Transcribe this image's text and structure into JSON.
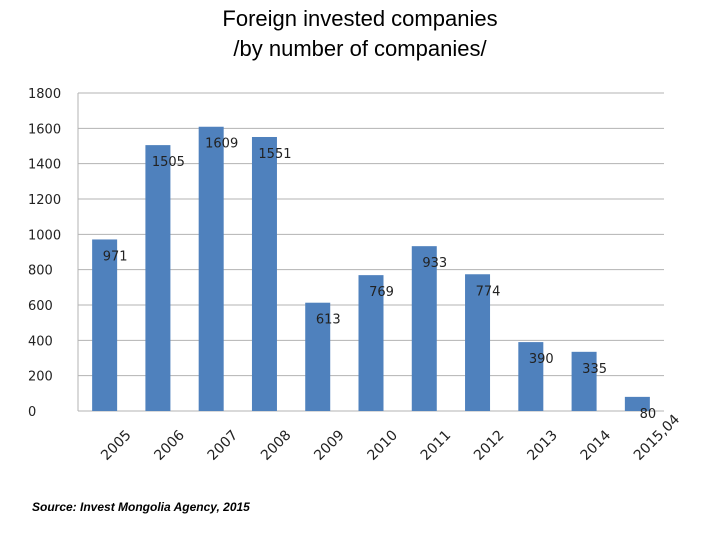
{
  "chart_data": {
    "type": "bar",
    "title_line1": "Foreign invested companies",
    "title_line2": "/by number of companies/",
    "categories": [
      "2005",
      "2006",
      "2007",
      "2008",
      "2009",
      "2010",
      "2011",
      "2012",
      "2013",
      "2014",
      "2015,04"
    ],
    "values": [
      971,
      1505,
      1609,
      1551,
      613,
      769,
      933,
      774,
      390,
      335,
      80
    ],
    "ylim": [
      0,
      1800
    ],
    "yticks": [
      0,
      200,
      400,
      600,
      800,
      1000,
      1200,
      1400,
      1600,
      1800
    ],
    "grid": true,
    "bar_color": "#4f81bd",
    "xlabel": "",
    "ylabel": ""
  },
  "source": "Source: Invest Mongolia Agency, 2015"
}
